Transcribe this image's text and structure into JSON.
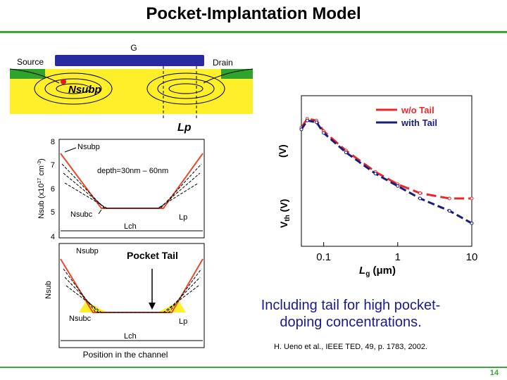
{
  "title": "Pocket-Implantation Model",
  "device": {
    "gate_label": "G",
    "source_label": "Source",
    "drain_label": "Drain",
    "nsubp_label": "Nsubp",
    "lp_label": "Lp"
  },
  "profile_top": {
    "y_axis_label": "Nsub (x10",
    "y_axis_exp": "17",
    "y_axis_unit": " cm",
    "y_axis_unit_exp": "-3",
    "y_axis_close": ")",
    "y_ticks": [
      "8",
      "7",
      "6",
      "5",
      "4"
    ],
    "nsubp_label": "Nsubp",
    "nsubc_label": "Nsubc",
    "depth_label": "depth=30nm – 60nm",
    "lp_label": "Lp",
    "lch_label": "Lch"
  },
  "profile_bottom": {
    "y_axis_label": "Nsub",
    "nsubp_label": "Nsubp",
    "nsubc_label": "Nsubc",
    "pocket_tail_label": "Pocket Tail",
    "lp_label": "Lp",
    "lch_label": "Lch",
    "x_axis_label": "Position in the channel"
  },
  "chart_data": {
    "type": "line",
    "xlabel": "Lg (μm)",
    "ylabel": "Vth (V)",
    "x_scale": "log",
    "xlim": [
      0.05,
      10
    ],
    "x_ticks": [
      "0.1",
      "1",
      "10"
    ],
    "legend": [
      "w/o Tail",
      "with Tail"
    ],
    "legend_position": "top-right",
    "series": [
      {
        "name": "w/o Tail",
        "color": "#e8292b",
        "x": [
          0.05,
          0.06,
          0.08,
          0.1,
          0.2,
          0.5,
          1,
          2,
          5,
          10
        ],
        "y": [
          0.82,
          0.87,
          0.86,
          0.8,
          0.69,
          0.57,
          0.5,
          0.45,
          0.42,
          0.42
        ]
      },
      {
        "name": "with Tail",
        "color": "#1c1c7c",
        "x": [
          0.05,
          0.06,
          0.08,
          0.1,
          0.2,
          0.5,
          1,
          2,
          5,
          10
        ],
        "y": [
          0.81,
          0.86,
          0.85,
          0.79,
          0.68,
          0.56,
          0.49,
          0.42,
          0.35,
          0.28
        ]
      }
    ],
    "extra_labels": {
      "v_unit": "(V)",
      "lg_sym": "L",
      "lg_sub": "g",
      "lg_unit": " (μm)",
      "vth_sym": "V",
      "vth_sub": "th",
      "vth_unit": " (V)"
    }
  },
  "caption": "Including tail for high pocket-doping concentrations.",
  "caption_line1": "Including tail for high pocket-",
  "caption_line2": "doping concentrations.",
  "citation": "H. Ueno et al., IEEE TED, 49, p. 1783, 2002.",
  "page_number": "14"
}
